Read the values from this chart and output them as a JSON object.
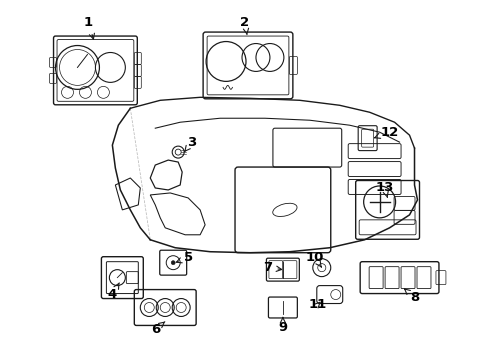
{
  "background_color": "#ffffff",
  "line_color": "#1a1a1a",
  "label_color": "#000000",
  "figsize": [
    4.89,
    3.6
  ],
  "dpi": 100,
  "font_size": 9.5
}
